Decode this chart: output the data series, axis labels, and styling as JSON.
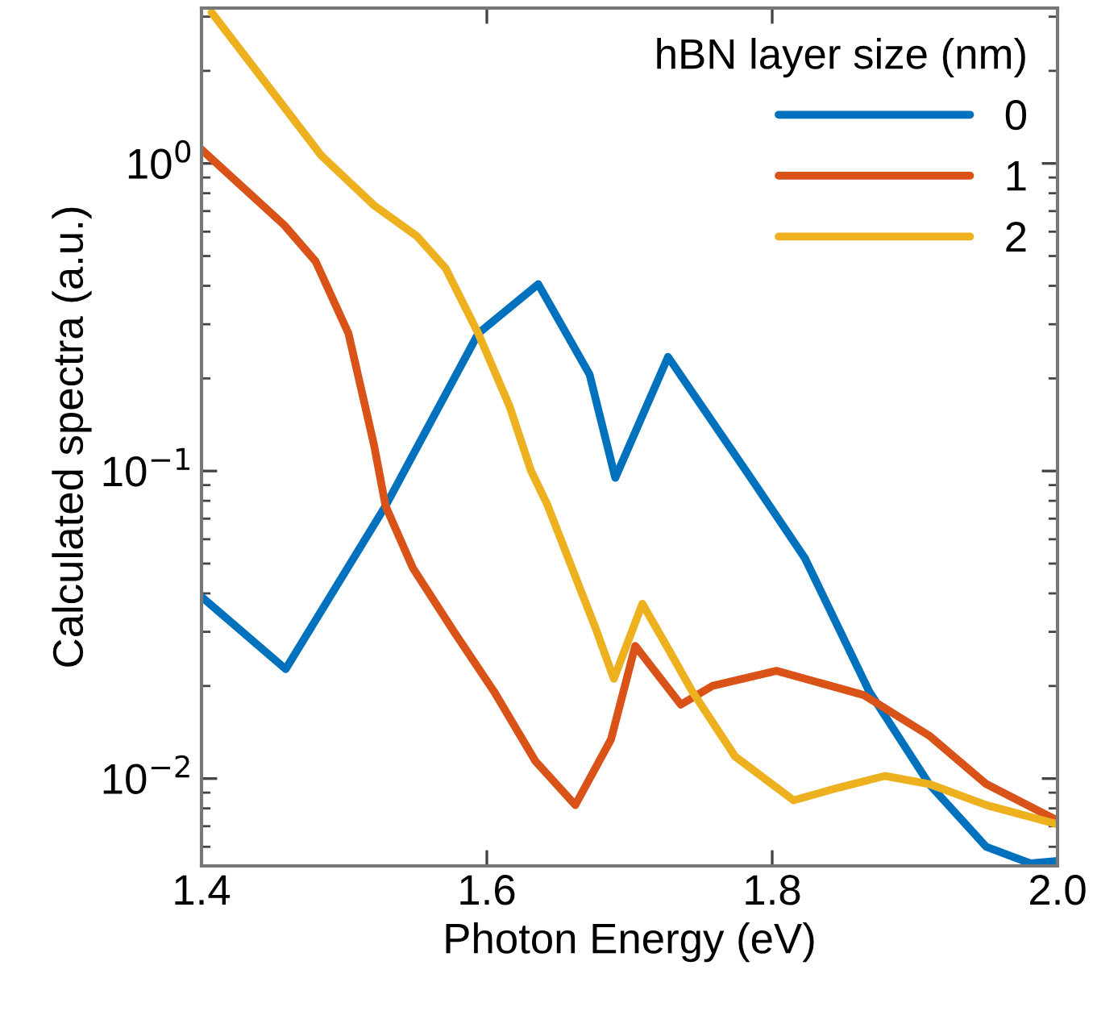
{
  "chart_data": {
    "type": "line",
    "xlabel": "Photon Energy (eV)",
    "ylabel": "Calculated spectra (a.u.)",
    "legend_title": "hBN layer size (nm)",
    "legend": "top right",
    "grid": false,
    "log": "y",
    "xlim": [
      1.4,
      2.0
    ],
    "xticks": [
      1.4,
      1.6,
      1.8,
      {
        "value": 2.0,
        "label": "2.0"
      }
    ],
    "ylim": [
      0.0052,
      3.2
    ],
    "yticks": [
      {
        "value": 0.01,
        "label": "10$^{−2}$"
      },
      {
        "value": 0.1,
        "label": "10$^{−1}$"
      },
      {
        "value": 1,
        "label": "10$^{0}$"
      }
    ],
    "series": [
      {
        "name": "0",
        "color": "#0072bd",
        "x": [
          1.4,
          1.459,
          1.529,
          1.594,
          1.636,
          1.672,
          1.69,
          1.727,
          1.785,
          1.823,
          1.868,
          1.91,
          1.95,
          1.981,
          2.0
        ],
        "values": [
          0.039,
          0.0227,
          0.077,
          0.28,
          0.405,
          0.206,
          0.095,
          0.235,
          0.095,
          0.052,
          0.0192,
          0.0096,
          0.006,
          0.0053,
          0.0054
        ]
      },
      {
        "name": "1",
        "color": "#d95319",
        "x": [
          1.4,
          1.458,
          1.48,
          1.503,
          1.521,
          1.529,
          1.548,
          1.577,
          1.605,
          1.634,
          1.662,
          1.687,
          1.704,
          1.736,
          1.758,
          1.803,
          1.864,
          1.91,
          1.95,
          2.0
        ],
        "values": [
          1.11,
          0.63,
          0.48,
          0.28,
          0.121,
          0.077,
          0.0485,
          0.03,
          0.0192,
          0.0114,
          0.0082,
          0.0134,
          0.027,
          0.0174,
          0.02,
          0.0224,
          0.0187,
          0.0138,
          0.0096,
          0.0073
        ]
      },
      {
        "name": "2",
        "color": "#edb120",
        "x": [
          1.407,
          1.446,
          1.484,
          1.521,
          1.551,
          1.571,
          1.594,
          1.616,
          1.631,
          1.642,
          1.664,
          1.676,
          1.689,
          1.709,
          1.727,
          1.744,
          1.774,
          1.815,
          1.845,
          1.879,
          1.91,
          1.95,
          2.0
        ],
        "values": [
          3.1,
          1.8,
          1.06,
          0.73,
          0.58,
          0.457,
          0.28,
          0.162,
          0.1,
          0.0785,
          0.043,
          0.031,
          0.0211,
          0.037,
          0.0265,
          0.0192,
          0.0118,
          0.0085,
          0.0093,
          0.0102,
          0.0096,
          0.0082,
          0.0071
        ]
      }
    ]
  }
}
